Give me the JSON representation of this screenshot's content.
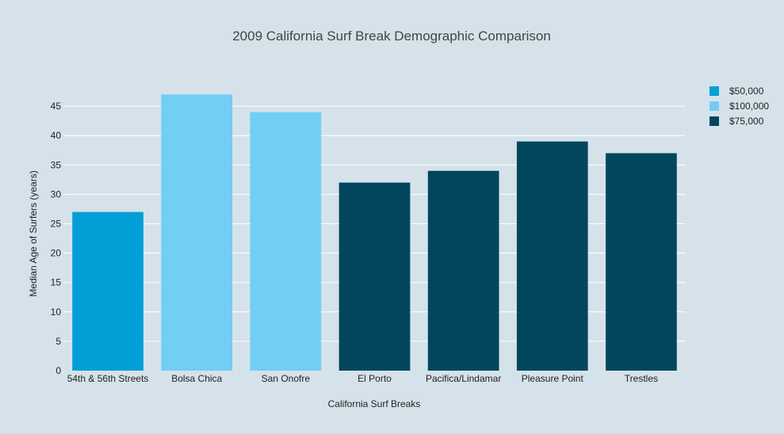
{
  "chart_data": {
    "type": "bar",
    "title": "2009 California Surf Break Demographic Comparison",
    "xlabel": "California Surf Breaks",
    "ylabel": "Median Age of Surfers (years)",
    "ylim": [
      0,
      50
    ],
    "yticks": [
      0,
      5,
      10,
      15,
      20,
      25,
      30,
      35,
      40,
      45
    ],
    "grid": true,
    "legend_position": "top-right",
    "categories": [
      "54th & 56th Streets",
      "Bolsa Chica",
      "San Onofre",
      "El Porto",
      "Pacifica/Lindamar",
      "Pleasure Point",
      "Trestles"
    ],
    "values": [
      27,
      47,
      44,
      32,
      34,
      39,
      37
    ],
    "bar_series": [
      "$50,000",
      "$100,000",
      "$100,000",
      "$75,000",
      "$75,000",
      "$75,000",
      "$75,000"
    ],
    "series": [
      {
        "name": "$50,000",
        "color": "#029fd6"
      },
      {
        "name": "$100,000",
        "color": "#72cef4"
      },
      {
        "name": "$75,000",
        "color": "#02465e"
      }
    ]
  }
}
